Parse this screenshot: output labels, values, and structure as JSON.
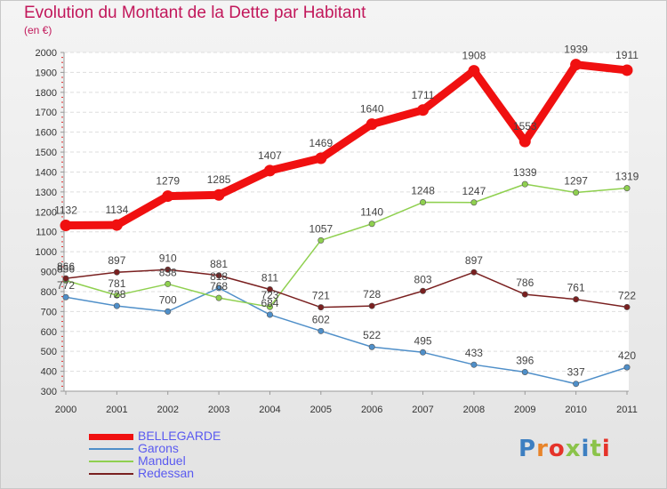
{
  "title": "Evolution du Montant de la Dette par Habitant",
  "subtitle": "(en €)",
  "brand": {
    "text": "Proxiti",
    "letter_colors": [
      "#3d7fc1",
      "#e8842a",
      "#e5332a",
      "#8bc34a",
      "#3d7fc1",
      "#8bc34a",
      "#e5332a"
    ]
  },
  "chart_data": {
    "type": "line",
    "x": [
      "2000",
      "2001",
      "2002",
      "2003",
      "2004",
      "2005",
      "2006",
      "2007",
      "2008",
      "2009",
      "2010",
      "2011"
    ],
    "ylim": [
      300,
      2000
    ],
    "yticks": [
      300,
      400,
      500,
      600,
      700,
      800,
      900,
      1000,
      1100,
      1200,
      1300,
      1400,
      1500,
      1600,
      1700,
      1800,
      1900,
      2000
    ],
    "grid": "horizontal",
    "legend_position": "bottom-left",
    "series": [
      {
        "name": "BELLEGARDE",
        "color": "#f01010",
        "values": [
          1132,
          1134,
          1279,
          1285,
          1407,
          1469,
          1640,
          1711,
          1908,
          1553,
          1939,
          1911
        ]
      },
      {
        "name": "Garons",
        "color": "#4f8fc9",
        "values": [
          772,
          728,
          700,
          818,
          684,
          602,
          522,
          495,
          433,
          396,
          337,
          420
        ]
      },
      {
        "name": "Manduel",
        "color": "#8fd04f",
        "values": [
          856,
          781,
          838,
          768,
          723,
          1057,
          1140,
          1248,
          1247,
          1339,
          1297,
          1319
        ]
      },
      {
        "name": "Redessan",
        "color": "#7a2020",
        "values": [
          866,
          897,
          910,
          881,
          811,
          721,
          728,
          803,
          897,
          786,
          761,
          722
        ]
      }
    ]
  }
}
